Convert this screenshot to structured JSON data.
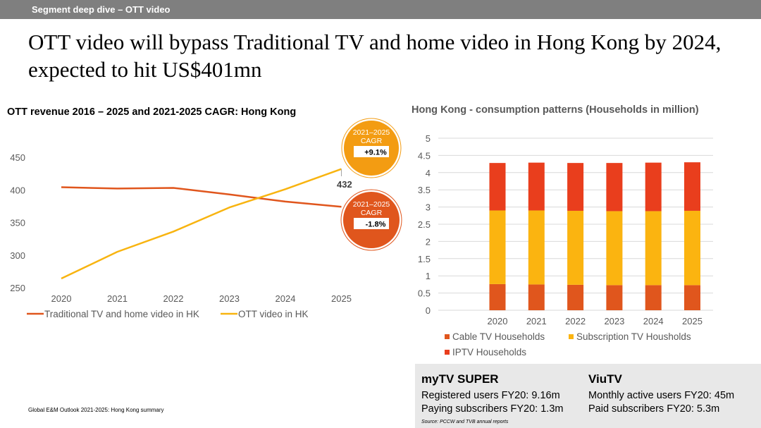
{
  "header": {
    "section_label": "Segment deep dive – OTT video",
    "headline": "OTT video will bypass Traditional TV and home video in Hong Kong by 2024, expected to hit US$401mn"
  },
  "chart_data": [
    {
      "type": "line",
      "title": "OTT revenue 2016 – 2025 and 2021-2025 CAGR: Hong Kong",
      "categories": [
        "2020",
        "2021",
        "2022",
        "2023",
        "2024",
        "2025"
      ],
      "ylim": [
        250,
        450
      ],
      "yticks": [
        250,
        300,
        350,
        400,
        450
      ],
      "grid": false,
      "legend_position": "bottom",
      "series": [
        {
          "name": "Traditional TV and home video in HK",
          "color": "#e0561d",
          "values": [
            404,
            402,
            403,
            393,
            382,
            374
          ]
        },
        {
          "name": "OTT video in HK",
          "color": "#f8b410",
          "values": [
            264,
            305,
            336,
            373,
            401,
            432
          ]
        }
      ],
      "annotations": [
        {
          "label_line1": "2021–2025",
          "label_line2": "CAGR",
          "value": "+9.1%",
          "color": "#f39c12"
        },
        {
          "label_line1": "2021–2025",
          "label_line2": "CAGR",
          "value": "-1.8%",
          "color": "#e0561d"
        },
        {
          "text": "432"
        }
      ]
    },
    {
      "type": "bar",
      "stacked": true,
      "title": "Hong Kong - consumption patterns (Households in million)",
      "categories": [
        "2020",
        "2021",
        "2022",
        "2023",
        "2024",
        "2025"
      ],
      "ylim": [
        0,
        5
      ],
      "yticks": [
        "0",
        "0.5",
        "1",
        "1.5",
        "2",
        "2.5",
        "3",
        "3.5",
        "4",
        "4.5",
        "5"
      ],
      "grid": true,
      "legend_position": "bottom",
      "series": [
        {
          "name": "Cable TV Households",
          "color": "#e0561d",
          "values": [
            0.76,
            0.75,
            0.74,
            0.73,
            0.73,
            0.73
          ]
        },
        {
          "name": "Subscription TV Houshölds",
          "color": "#fbb410",
          "values": [
            2.14,
            2.15,
            2.15,
            2.15,
            2.15,
            2.16
          ]
        },
        {
          "name": "IPTV Households",
          "color": "#e93e1d",
          "values": [
            1.38,
            1.39,
            1.39,
            1.4,
            1.41,
            1.41
          ]
        }
      ]
    }
  ],
  "footnote": "Global E&M Outlook 2021-2025: Hong Kong summary",
  "info": {
    "mytv": {
      "title": "myTV SUPER",
      "line1": "Registered users FY20: 9.16m",
      "line2": "Paying subscribers FY20: 1.3m"
    },
    "viutv": {
      "title": "ViuTV",
      "line1": "Monthly active users FY20: 45m",
      "line2": "Paid subscribers FY20: 5.3m"
    },
    "source": "Source: PCCW and TVB annual reports"
  }
}
